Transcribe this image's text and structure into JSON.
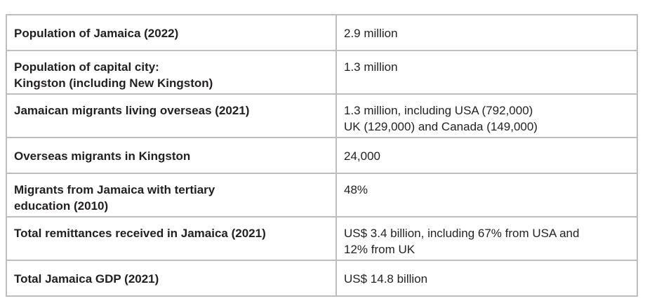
{
  "rows": [
    {
      "label": [
        "Population of Jamaica (2022)"
      ],
      "value": [
        "2.9 million"
      ]
    },
    {
      "label": [
        "Population of capital city:",
        "Kingston (including New Kingston)"
      ],
      "value": [
        "1.3 million"
      ]
    },
    {
      "label": [
        "Jamaican migrants living overseas (2021)"
      ],
      "value": [
        "1.3 million, including USA (792,000)",
        "UK (129,000) and Canada (149,000)"
      ]
    },
    {
      "label": [
        "Overseas migrants in Kingston"
      ],
      "value": [
        "24,000"
      ]
    },
    {
      "label": [
        "Migrants from Jamaica with tertiary",
        "education (2010)"
      ],
      "value": [
        "48%"
      ]
    },
    {
      "label": [
        "Total remittances received in Jamaica (2021)"
      ],
      "value": [
        "US$ 3.4 billion, including 67% from USA and",
        "12% from UK"
      ]
    },
    {
      "label": [
        "Total Jamaica GDP (2021)"
      ],
      "value": [
        "US$ 14.8 billion"
      ]
    }
  ]
}
